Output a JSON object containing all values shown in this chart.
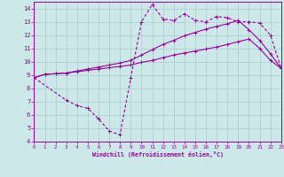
{
  "xlabel": "Windchill (Refroidissement éolien,°C)",
  "background_color": "#cce8e8",
  "grid_color": "#aacccc",
  "line_color": "#990099",
  "xlim": [
    0,
    23
  ],
  "ylim": [
    4,
    14.5
  ],
  "xticks": [
    0,
    1,
    2,
    3,
    4,
    5,
    6,
    7,
    8,
    9,
    10,
    11,
    12,
    13,
    14,
    15,
    16,
    17,
    18,
    19,
    20,
    21,
    22,
    23
  ],
  "yticks": [
    4,
    5,
    6,
    7,
    8,
    9,
    10,
    11,
    12,
    13,
    14
  ],
  "line1_x": [
    0,
    1,
    2,
    3,
    4,
    5,
    6,
    7,
    8,
    9,
    10,
    11,
    12,
    13,
    14,
    15,
    16,
    17,
    18,
    19,
    20,
    21,
    22,
    23
  ],
  "line1_y": [
    8.8,
    9.05,
    9.1,
    9.15,
    9.25,
    9.35,
    9.45,
    9.55,
    9.65,
    9.75,
    9.95,
    10.1,
    10.3,
    10.5,
    10.65,
    10.8,
    10.95,
    11.1,
    11.3,
    11.5,
    11.7,
    11.0,
    10.1,
    9.5
  ],
  "line2_x": [
    0,
    1,
    2,
    3,
    4,
    5,
    6,
    7,
    8,
    9,
    10,
    11,
    12,
    13,
    14,
    15,
    16,
    17,
    18,
    19,
    20,
    21,
    22,
    23
  ],
  "line2_y": [
    8.8,
    9.05,
    9.1,
    9.15,
    9.3,
    9.45,
    9.6,
    9.75,
    9.9,
    10.1,
    10.5,
    10.9,
    11.3,
    11.6,
    11.95,
    12.2,
    12.45,
    12.65,
    12.85,
    13.1,
    12.4,
    11.6,
    10.6,
    9.5
  ],
  "line3_x": [
    0,
    3,
    4,
    5,
    6,
    7,
    8,
    9,
    10,
    11,
    12,
    13,
    14,
    15,
    16,
    17,
    18,
    19,
    20,
    21,
    22,
    23
  ],
  "line3_y": [
    8.8,
    7.1,
    6.7,
    6.5,
    5.7,
    4.8,
    4.5,
    8.8,
    13.0,
    14.3,
    13.2,
    13.1,
    13.6,
    13.1,
    13.0,
    13.4,
    13.3,
    13.0,
    13.0,
    12.9,
    12.0,
    9.5
  ]
}
